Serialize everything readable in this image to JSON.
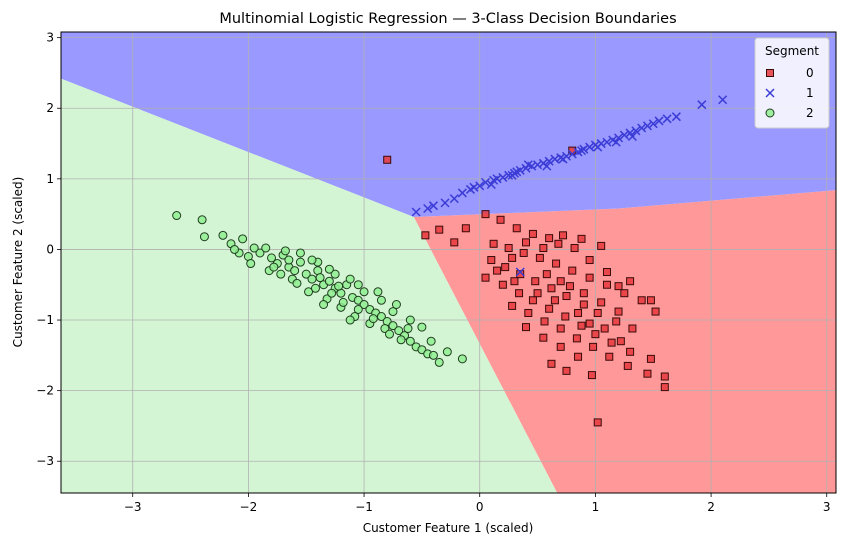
{
  "chart_data": {
    "type": "scatter",
    "title": "Multinomial Logistic Regression — 3-Class Decision Boundaries",
    "xlabel": "Customer Feature 1 (scaled)",
    "ylabel": "Customer Feature 2 (scaled)",
    "xlim": [
      -3.62,
      3.08
    ],
    "ylim": [
      -3.45,
      3.08
    ],
    "xticks": [
      -3,
      -2,
      -1,
      0,
      1,
      2,
      3
    ],
    "yticks": [
      -3,
      -2,
      -1,
      0,
      1,
      2,
      3
    ],
    "grid": true,
    "legend": {
      "title": "Segment",
      "position": "top-right"
    },
    "regions": [
      {
        "class": "0",
        "color": "#ff9999",
        "polygon": [
          [
            -0.57,
            0.46
          ],
          [
            1.2,
            0.58
          ],
          [
            3.08,
            0.84
          ],
          [
            3.08,
            -3.45
          ],
          [
            0.67,
            -3.45
          ]
        ]
      },
      {
        "class": "1",
        "color": "#9999ff",
        "polygon": [
          [
            -3.62,
            2.42
          ],
          [
            -0.57,
            0.46
          ],
          [
            1.2,
            0.58
          ],
          [
            3.08,
            0.84
          ],
          [
            3.08,
            3.08
          ],
          [
            -3.62,
            3.08
          ]
        ]
      },
      {
        "class": "2",
        "color": "#d4f5d4",
        "polygon": [
          [
            -3.62,
            2.42
          ],
          [
            -0.57,
            0.46
          ],
          [
            0.67,
            -3.45
          ],
          [
            -3.62,
            -3.45
          ]
        ]
      }
    ],
    "series": [
      {
        "name": "0",
        "marker": "square",
        "color": "#e8383d",
        "points": [
          [
            -0.8,
            1.27
          ],
          [
            0.8,
            1.4
          ],
          [
            -0.47,
            0.2
          ],
          [
            -0.35,
            0.28
          ],
          [
            -0.22,
            0.1
          ],
          [
            -0.12,
            0.3
          ],
          [
            0.05,
            0.5
          ],
          [
            0.18,
            0.42
          ],
          [
            0.32,
            0.3
          ],
          [
            0.46,
            0.22
          ],
          [
            0.6,
            0.16
          ],
          [
            0.72,
            0.2
          ],
          [
            0.88,
            0.15
          ],
          [
            1.05,
            0.05
          ],
          [
            0.12,
            0.08
          ],
          [
            0.25,
            0.02
          ],
          [
            0.38,
            -0.05
          ],
          [
            0.52,
            -0.12
          ],
          [
            0.66,
            -0.2
          ],
          [
            0.8,
            -0.3
          ],
          [
            0.95,
            -0.4
          ],
          [
            1.1,
            -0.5
          ],
          [
            1.25,
            -0.62
          ],
          [
            1.4,
            -0.72
          ],
          [
            0.1,
            -0.15
          ],
          [
            0.22,
            -0.25
          ],
          [
            0.35,
            -0.35
          ],
          [
            0.48,
            -0.45
          ],
          [
            0.62,
            -0.55
          ],
          [
            0.75,
            -0.66
          ],
          [
            0.9,
            -0.78
          ],
          [
            1.02,
            -0.9
          ],
          [
            1.18,
            -1.02
          ],
          [
            1.32,
            -1.12
          ],
          [
            0.2,
            -0.5
          ],
          [
            0.34,
            -0.62
          ],
          [
            0.46,
            -0.72
          ],
          [
            0.6,
            -0.84
          ],
          [
            0.74,
            -0.95
          ],
          [
            0.88,
            -1.08
          ],
          [
            1.0,
            -1.2
          ],
          [
            1.14,
            -1.32
          ],
          [
            1.3,
            -1.45
          ],
          [
            1.48,
            -1.55
          ],
          [
            0.28,
            -0.8
          ],
          [
            0.42,
            -0.9
          ],
          [
            0.56,
            -1.02
          ],
          [
            0.7,
            -1.12
          ],
          [
            0.84,
            -1.26
          ],
          [
            0.98,
            -1.38
          ],
          [
            1.12,
            -1.52
          ],
          [
            1.28,
            -1.65
          ],
          [
            1.45,
            -1.76
          ],
          [
            1.6,
            -1.8
          ],
          [
            0.4,
            -1.1
          ],
          [
            0.55,
            -1.25
          ],
          [
            0.7,
            -1.38
          ],
          [
            0.85,
            -1.52
          ],
          [
            0.62,
            -1.62
          ],
          [
            0.75,
            -1.72
          ],
          [
            0.97,
            -1.78
          ],
          [
            1.02,
            -2.45
          ],
          [
            1.6,
            -1.95
          ],
          [
            1.22,
            -1.3
          ],
          [
            1.52,
            -0.88
          ],
          [
            1.48,
            -0.72
          ],
          [
            1.3,
            -0.45
          ],
          [
            1.1,
            -0.32
          ],
          [
            0.95,
            -0.15
          ],
          [
            0.82,
            0.02
          ],
          [
            0.68,
            0.08
          ],
          [
            0.55,
            0.02
          ],
          [
            0.4,
            0.1
          ],
          [
            0.28,
            -0.12
          ],
          [
            0.15,
            -0.3
          ],
          [
            0.05,
            -0.4
          ],
          [
            0.3,
            -0.45
          ],
          [
            0.5,
            -0.62
          ],
          [
            0.65,
            -0.72
          ],
          [
            0.78,
            -0.52
          ],
          [
            0.9,
            -0.62
          ],
          [
            1.05,
            -0.75
          ],
          [
            1.2,
            -0.88
          ],
          [
            0.58,
            -0.35
          ],
          [
            0.7,
            -0.45
          ],
          [
            0.85,
            -0.9
          ],
          [
            0.95,
            -1.05
          ],
          [
            1.08,
            -1.12
          ],
          [
            1.2,
            -0.52
          ]
        ]
      },
      {
        "name": "1",
        "marker": "x",
        "color": "#3b3bd6",
        "points": [
          [
            -0.55,
            0.53
          ],
          [
            -0.45,
            0.58
          ],
          [
            -0.4,
            0.62
          ],
          [
            -0.3,
            0.66
          ],
          [
            -0.22,
            0.72
          ],
          [
            -0.15,
            0.8
          ],
          [
            -0.08,
            0.85
          ],
          [
            0.0,
            0.9
          ],
          [
            0.05,
            0.95
          ],
          [
            0.1,
            0.92
          ],
          [
            0.15,
            1.0
          ],
          [
            0.2,
            1.02
          ],
          [
            0.25,
            1.05
          ],
          [
            0.3,
            1.08
          ],
          [
            0.35,
            1.12
          ],
          [
            0.4,
            1.15
          ],
          [
            0.45,
            1.18
          ],
          [
            0.5,
            1.2
          ],
          [
            0.55,
            1.22
          ],
          [
            0.6,
            1.25
          ],
          [
            0.65,
            1.28
          ],
          [
            0.7,
            1.3
          ],
          [
            0.75,
            1.32
          ],
          [
            0.8,
            1.35
          ],
          [
            0.85,
            1.38
          ],
          [
            0.9,
            1.42
          ],
          [
            0.95,
            1.45
          ],
          [
            1.0,
            1.48
          ],
          [
            1.05,
            1.5
          ],
          [
            1.1,
            1.52
          ],
          [
            1.15,
            1.55
          ],
          [
            1.2,
            1.58
          ],
          [
            1.25,
            1.62
          ],
          [
            1.3,
            1.65
          ],
          [
            1.35,
            1.68
          ],
          [
            1.4,
            1.72
          ],
          [
            1.45,
            1.75
          ],
          [
            1.5,
            1.78
          ],
          [
            1.55,
            1.82
          ],
          [
            1.62,
            1.85
          ],
          [
            1.7,
            1.88
          ],
          [
            1.92,
            2.05
          ],
          [
            2.1,
            2.12
          ],
          [
            0.35,
            -0.32
          ],
          [
            0.32,
            1.1
          ],
          [
            0.42,
            1.2
          ],
          [
            0.58,
            1.18
          ],
          [
            0.72,
            1.28
          ],
          [
            0.88,
            1.4
          ],
          [
            1.02,
            1.45
          ],
          [
            1.18,
            1.52
          ],
          [
            1.32,
            1.6
          ],
          [
            -0.05,
            0.88
          ],
          [
            0.12,
            0.98
          ],
          [
            0.28,
            1.05
          ]
        ]
      },
      {
        "name": "2",
        "marker": "circle",
        "color": "#90ee90",
        "points": [
          [
            -2.62,
            0.48
          ],
          [
            -2.4,
            0.42
          ],
          [
            -2.38,
            0.18
          ],
          [
            -2.22,
            0.2
          ],
          [
            -2.15,
            0.08
          ],
          [
            -2.05,
            0.15
          ],
          [
            -2.08,
            -0.05
          ],
          [
            -2.0,
            -0.1
          ],
          [
            -1.9,
            -0.05
          ],
          [
            -1.85,
            0.02
          ],
          [
            -1.8,
            -0.12
          ],
          [
            -1.75,
            -0.2
          ],
          [
            -1.7,
            -0.08
          ],
          [
            -1.65,
            -0.25
          ],
          [
            -1.6,
            -0.3
          ],
          [
            -1.55,
            -0.18
          ],
          [
            -1.5,
            -0.35
          ],
          [
            -1.45,
            -0.42
          ],
          [
            -1.4,
            -0.3
          ],
          [
            -1.35,
            -0.5
          ],
          [
            -1.3,
            -0.45
          ],
          [
            -1.25,
            -0.55
          ],
          [
            -1.2,
            -0.62
          ],
          [
            -1.15,
            -0.5
          ],
          [
            -1.1,
            -0.68
          ],
          [
            -1.05,
            -0.72
          ],
          [
            -1.0,
            -0.78
          ],
          [
            -0.95,
            -0.85
          ],
          [
            -0.9,
            -0.9
          ],
          [
            -0.85,
            -0.95
          ],
          [
            -0.8,
            -1.02
          ],
          [
            -0.75,
            -1.08
          ],
          [
            -0.7,
            -1.15
          ],
          [
            -0.65,
            -1.22
          ],
          [
            -0.6,
            -1.3
          ],
          [
            -0.55,
            -1.38
          ],
          [
            -0.5,
            -1.42
          ],
          [
            -0.45,
            -1.48
          ],
          [
            -0.4,
            -1.5
          ],
          [
            -0.35,
            -1.6
          ],
          [
            -0.15,
            -1.55
          ],
          [
            -0.6,
            -1.0
          ],
          [
            -0.75,
            -0.88
          ],
          [
            -0.85,
            -0.72
          ],
          [
            -1.0,
            -0.6
          ],
          [
            -1.12,
            -0.42
          ],
          [
            -1.25,
            -0.35
          ],
          [
            -1.4,
            -0.18
          ],
          [
            -1.55,
            -0.05
          ],
          [
            -1.68,
            -0.02
          ],
          [
            -1.82,
            -0.3
          ],
          [
            -1.62,
            -0.42
          ],
          [
            -1.48,
            -0.6
          ],
          [
            -1.32,
            -0.7
          ],
          [
            -1.2,
            -0.82
          ],
          [
            -1.08,
            -0.95
          ],
          [
            -0.95,
            -1.05
          ],
          [
            -0.82,
            -1.12
          ],
          [
            -0.68,
            -1.28
          ],
          [
            -1.95,
            0.02
          ],
          [
            -1.72,
            -0.35
          ],
          [
            -1.58,
            -0.48
          ],
          [
            -1.42,
            -0.55
          ],
          [
            -1.28,
            -0.62
          ],
          [
            -1.18,
            -0.75
          ],
          [
            -1.05,
            -0.85
          ],
          [
            -0.92,
            -0.98
          ],
          [
            -0.78,
            -1.2
          ],
          [
            -0.62,
            -1.12
          ],
          [
            -1.38,
            -0.4
          ],
          [
            -1.22,
            -0.52
          ],
          [
            -1.65,
            -0.15
          ],
          [
            -1.78,
            -0.25
          ],
          [
            -2.12,
            0.0
          ],
          [
            -1.98,
            -0.2
          ],
          [
            -0.5,
            -1.1
          ],
          [
            -0.42,
            -1.3
          ],
          [
            -0.28,
            -1.45
          ],
          [
            -1.12,
            -1.0
          ],
          [
            -1.35,
            -0.78
          ],
          [
            -1.45,
            -0.15
          ],
          [
            -1.3,
            -0.28
          ],
          [
            -1.05,
            -0.5
          ],
          [
            -0.88,
            -0.6
          ],
          [
            -0.72,
            -0.78
          ]
        ]
      }
    ]
  }
}
